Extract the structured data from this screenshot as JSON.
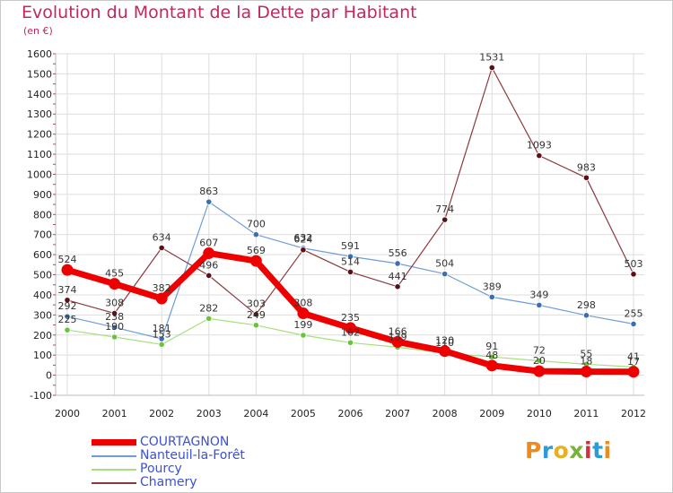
{
  "title": "Evolution du Montant de la Dette par Habitant",
  "subtitle": "(en €)",
  "brand": "Proxiti",
  "colors": {
    "title": "#c0295a",
    "grid": "#dddddd",
    "axis_text": "#222222",
    "legend_text": "#3b50d4"
  },
  "chart_data": {
    "type": "line",
    "title": "Evolution du Montant de la Dette par Habitant",
    "ylabel": "(en €)",
    "xlabel": "",
    "x": [
      "2000",
      "2001",
      "2002",
      "2003",
      "2004",
      "2005",
      "2006",
      "2007",
      "2008",
      "2009",
      "2010",
      "2011",
      "2012"
    ],
    "ylim": [
      -100,
      1600
    ],
    "yticks": [
      -100,
      0,
      100,
      200,
      300,
      400,
      500,
      600,
      700,
      800,
      900,
      1000,
      1100,
      1200,
      1300,
      1400,
      1500,
      1600
    ],
    "grid": true,
    "legend": "bottom-left",
    "series": [
      {
        "name": "COURTAGNON",
        "values": [
          524,
          455,
          382,
          607,
          569,
          308,
          235,
          166,
          120,
          48,
          20,
          18,
          17
        ],
        "labels": [
          "524",
          "455",
          "382",
          "607",
          "569",
          "308",
          "235",
          "166",
          "120",
          "48",
          "20",
          "18",
          "17"
        ],
        "color": "#ee0000",
        "point_color": "#ee0000"
      },
      {
        "name": "Nanteuil-la-Forêt",
        "values": [
          292,
          238,
          181,
          863,
          700,
          632,
          591,
          556,
          504,
          389,
          349,
          298,
          255
        ],
        "labels": [
          "292",
          "238",
          "181",
          "863",
          "700",
          "632",
          "591",
          "556",
          "504",
          "389",
          "349",
          "298",
          "255"
        ],
        "color": "#6e9ed6",
        "point_color": "#3a6fb4"
      },
      {
        "name": "Pourcy",
        "values": [
          225,
          190,
          153,
          282,
          249,
          199,
          162,
          139,
          110,
          91,
          72,
          55,
          41
        ],
        "labels": [
          "225",
          "190",
          "153",
          "282",
          "249",
          "199",
          "162",
          "139",
          "110",
          "91",
          "72",
          "55",
          "41"
        ],
        "color": "#a6df7c",
        "point_color": "#6cc23c"
      },
      {
        "name": "Chamery",
        "values": [
          374,
          308,
          634,
          496,
          303,
          624,
          514,
          441,
          774,
          1531,
          1093,
          983,
          503
        ],
        "labels": [
          "374",
          "308",
          "634",
          "496",
          "303",
          "624",
          "514",
          "441",
          "774",
          "1531",
          "1093",
          "983",
          "503"
        ],
        "color": "#8a3a3e",
        "point_color": "#5a1016"
      }
    ]
  }
}
